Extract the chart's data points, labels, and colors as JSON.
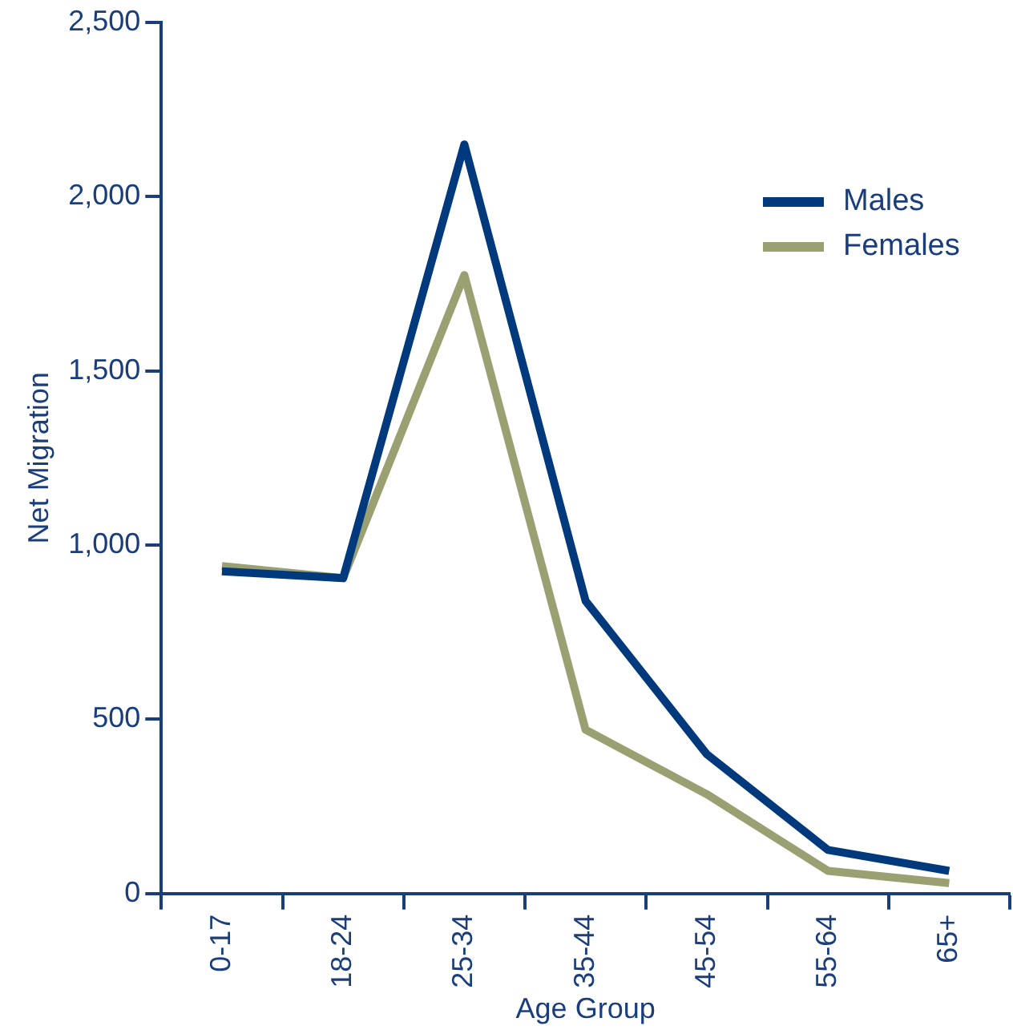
{
  "chart_data": {
    "type": "line",
    "xlabel": "Age Group",
    "ylabel": "Net Migration",
    "categories": [
      "0-17",
      "18-24",
      "25-34",
      "35-44",
      "45-54",
      "55-64",
      "65+"
    ],
    "series": [
      {
        "name": "Males",
        "color": "#003a7d",
        "values": [
          925,
          905,
          2150,
          840,
          400,
          125,
          65
        ]
      },
      {
        "name": "Females",
        "color": "#9aa072",
        "values": [
          940,
          905,
          1775,
          470,
          285,
          65,
          30
        ]
      }
    ],
    "ylim": [
      0,
      2500
    ],
    "yticks": [
      0,
      500,
      {
        "value": 1000,
        "label": "1,000"
      },
      {
        "value": 1500,
        "label": "1,500"
      },
      {
        "value": 2000,
        "label": "2,000"
      },
      {
        "value": 2500,
        "label": "2,500"
      }
    ],
    "grid": false,
    "legend": "top right",
    "marker": "none",
    "line_style": "solid"
  }
}
